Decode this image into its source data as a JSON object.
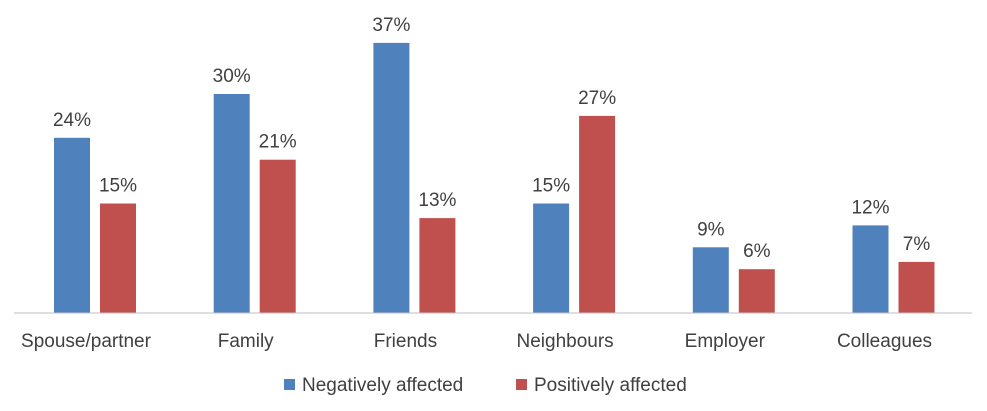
{
  "chart_data": {
    "type": "bar",
    "categories": [
      "Spouse/partner",
      "Family",
      "Friends",
      "Neighbours",
      "Employer",
      "Colleagues"
    ],
    "series": [
      {
        "name": "Negatively affected",
        "values": [
          24,
          30,
          37,
          15,
          9,
          12
        ],
        "labels": [
          "24%",
          "30%",
          "37%",
          "15%",
          "9%",
          "12%"
        ],
        "color": "#4f81bd"
      },
      {
        "name": "Positively affected",
        "values": [
          15,
          21,
          13,
          27,
          6,
          7
        ],
        "labels": [
          "15%",
          "21%",
          "13%",
          "27%",
          "6%",
          "7%"
        ],
        "color": "#c0504d"
      }
    ],
    "ylim": [
      0,
      40
    ],
    "grid": false,
    "legend_position": "bottom",
    "axis_color": "#bfbfbf",
    "text_color": "#404040"
  }
}
